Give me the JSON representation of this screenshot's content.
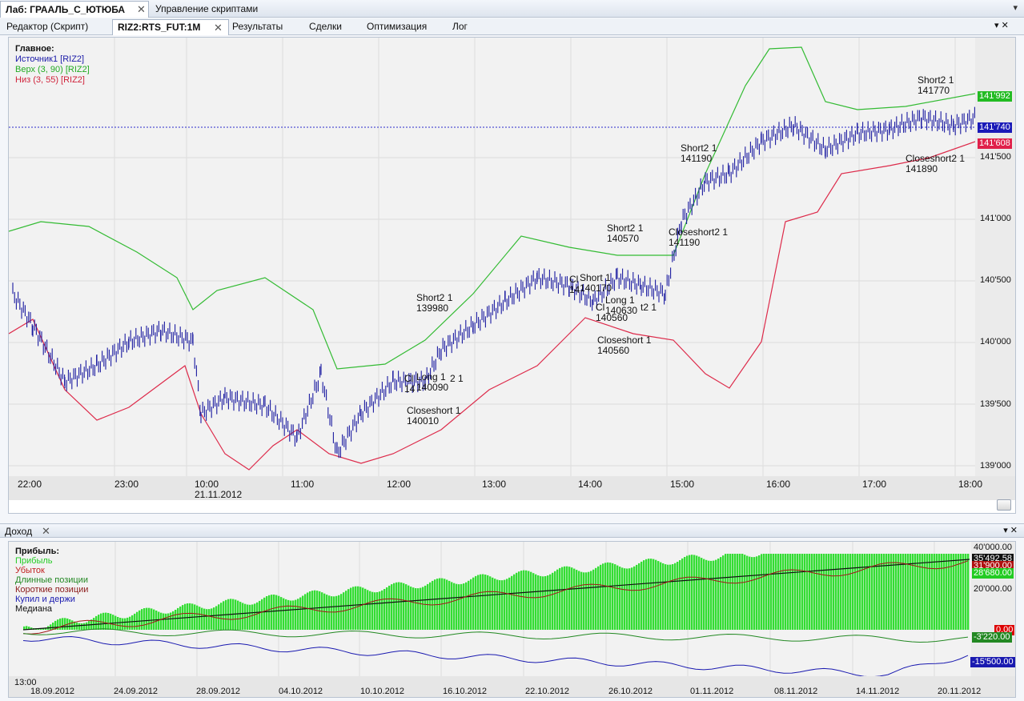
{
  "window": {
    "doc_tabs": [
      {
        "label": "Лаб: ГРААЛЬ_С_ЮТЮБА"
      },
      {
        "label": "Управление скриптами"
      }
    ],
    "sub_tabs": [
      {
        "label": "Редактор (Скрипт)"
      },
      {
        "label": "RIZ2:RTS_FUT:1M"
      },
      {
        "label": "Результаты"
      },
      {
        "label": "Сделки"
      },
      {
        "label": "Оптимизация"
      },
      {
        "label": "Лог"
      }
    ]
  },
  "price_chart": {
    "legend": {
      "title": "Главное:",
      "items": [
        {
          "label": "Источник1 [RIZ2]",
          "color": "#1a1aa8"
        },
        {
          "label": "Верх (3, 90) [RIZ2]",
          "color": "#22aa22"
        },
        {
          "label": "Низ (3, 55) [RIZ2]",
          "color": "#d0223a"
        }
      ]
    },
    "y_ticks": [
      "141'500",
      "141'000",
      "140'500",
      "140'000",
      "139'500",
      "139'000"
    ],
    "x_ticks": [
      "22:00",
      "23:00",
      "10:00",
      "11:00",
      "12:00",
      "13:00",
      "14:00",
      "15:00",
      "16:00",
      "17:00",
      "18:00"
    ],
    "date_label": "21.11.2012",
    "price_tags": {
      "upper": "141'992",
      "last": "141'740",
      "lower": "141'608"
    },
    "trade_labels": [
      "Short2 1\n139980",
      "Long 1\n140090",
      "Closeshort 1\n140010",
      "Cl\n14",
      "2 1",
      "Short 1\n140170",
      "Long 1\n140630",
      "Cl\n140560",
      "t2 1",
      "Closeshort 1\n140560",
      "Short2 1\n140570",
      "Closeshort2 1\n141190",
      "Short2 1\n141190",
      "Short2 1\n141770",
      "Closeshort2 1\n141890",
      "Cl\n14"
    ]
  },
  "income_panel": {
    "title": "Доход",
    "legend": {
      "title": "Прибыль:",
      "items": [
        {
          "label": "Прибыль",
          "color": "#22cc22"
        },
        {
          "label": "Убыток",
          "color": "#c02020"
        },
        {
          "label": "Длинные позиции",
          "color": "#228822"
        },
        {
          "label": "Короткие позиции",
          "color": "#8b1a1a"
        },
        {
          "label": "Купил и держи",
          "color": "#1a1ab0"
        },
        {
          "label": "Медиана",
          "color": "#111111"
        }
      ]
    },
    "y_ticks": [
      "40'000.00",
      "20'000.00"
    ],
    "value_tags": [
      {
        "text": "35'492.58",
        "color": "#111111"
      },
      {
        "text": "31'900.00",
        "color": "#b01010"
      },
      {
        "text": "28'680.00",
        "color": "#22cc22"
      },
      {
        "text": "0.00",
        "color": "#dd0000"
      },
      {
        "text": "-3'220.00",
        "color": "#228822"
      },
      {
        "text": "-15'500.00",
        "color": "#1a1ab0"
      }
    ],
    "x_ticks": [
      "18.09.2012",
      "24.09.2012",
      "28.09.2012",
      "04.10.2012",
      "10.10.2012",
      "16.10.2012",
      "22.10.2012",
      "26.10.2012",
      "01.11.2012",
      "08.11.2012",
      "14.11.2012",
      "20.11.2012"
    ],
    "time_label": "13:00"
  }
}
